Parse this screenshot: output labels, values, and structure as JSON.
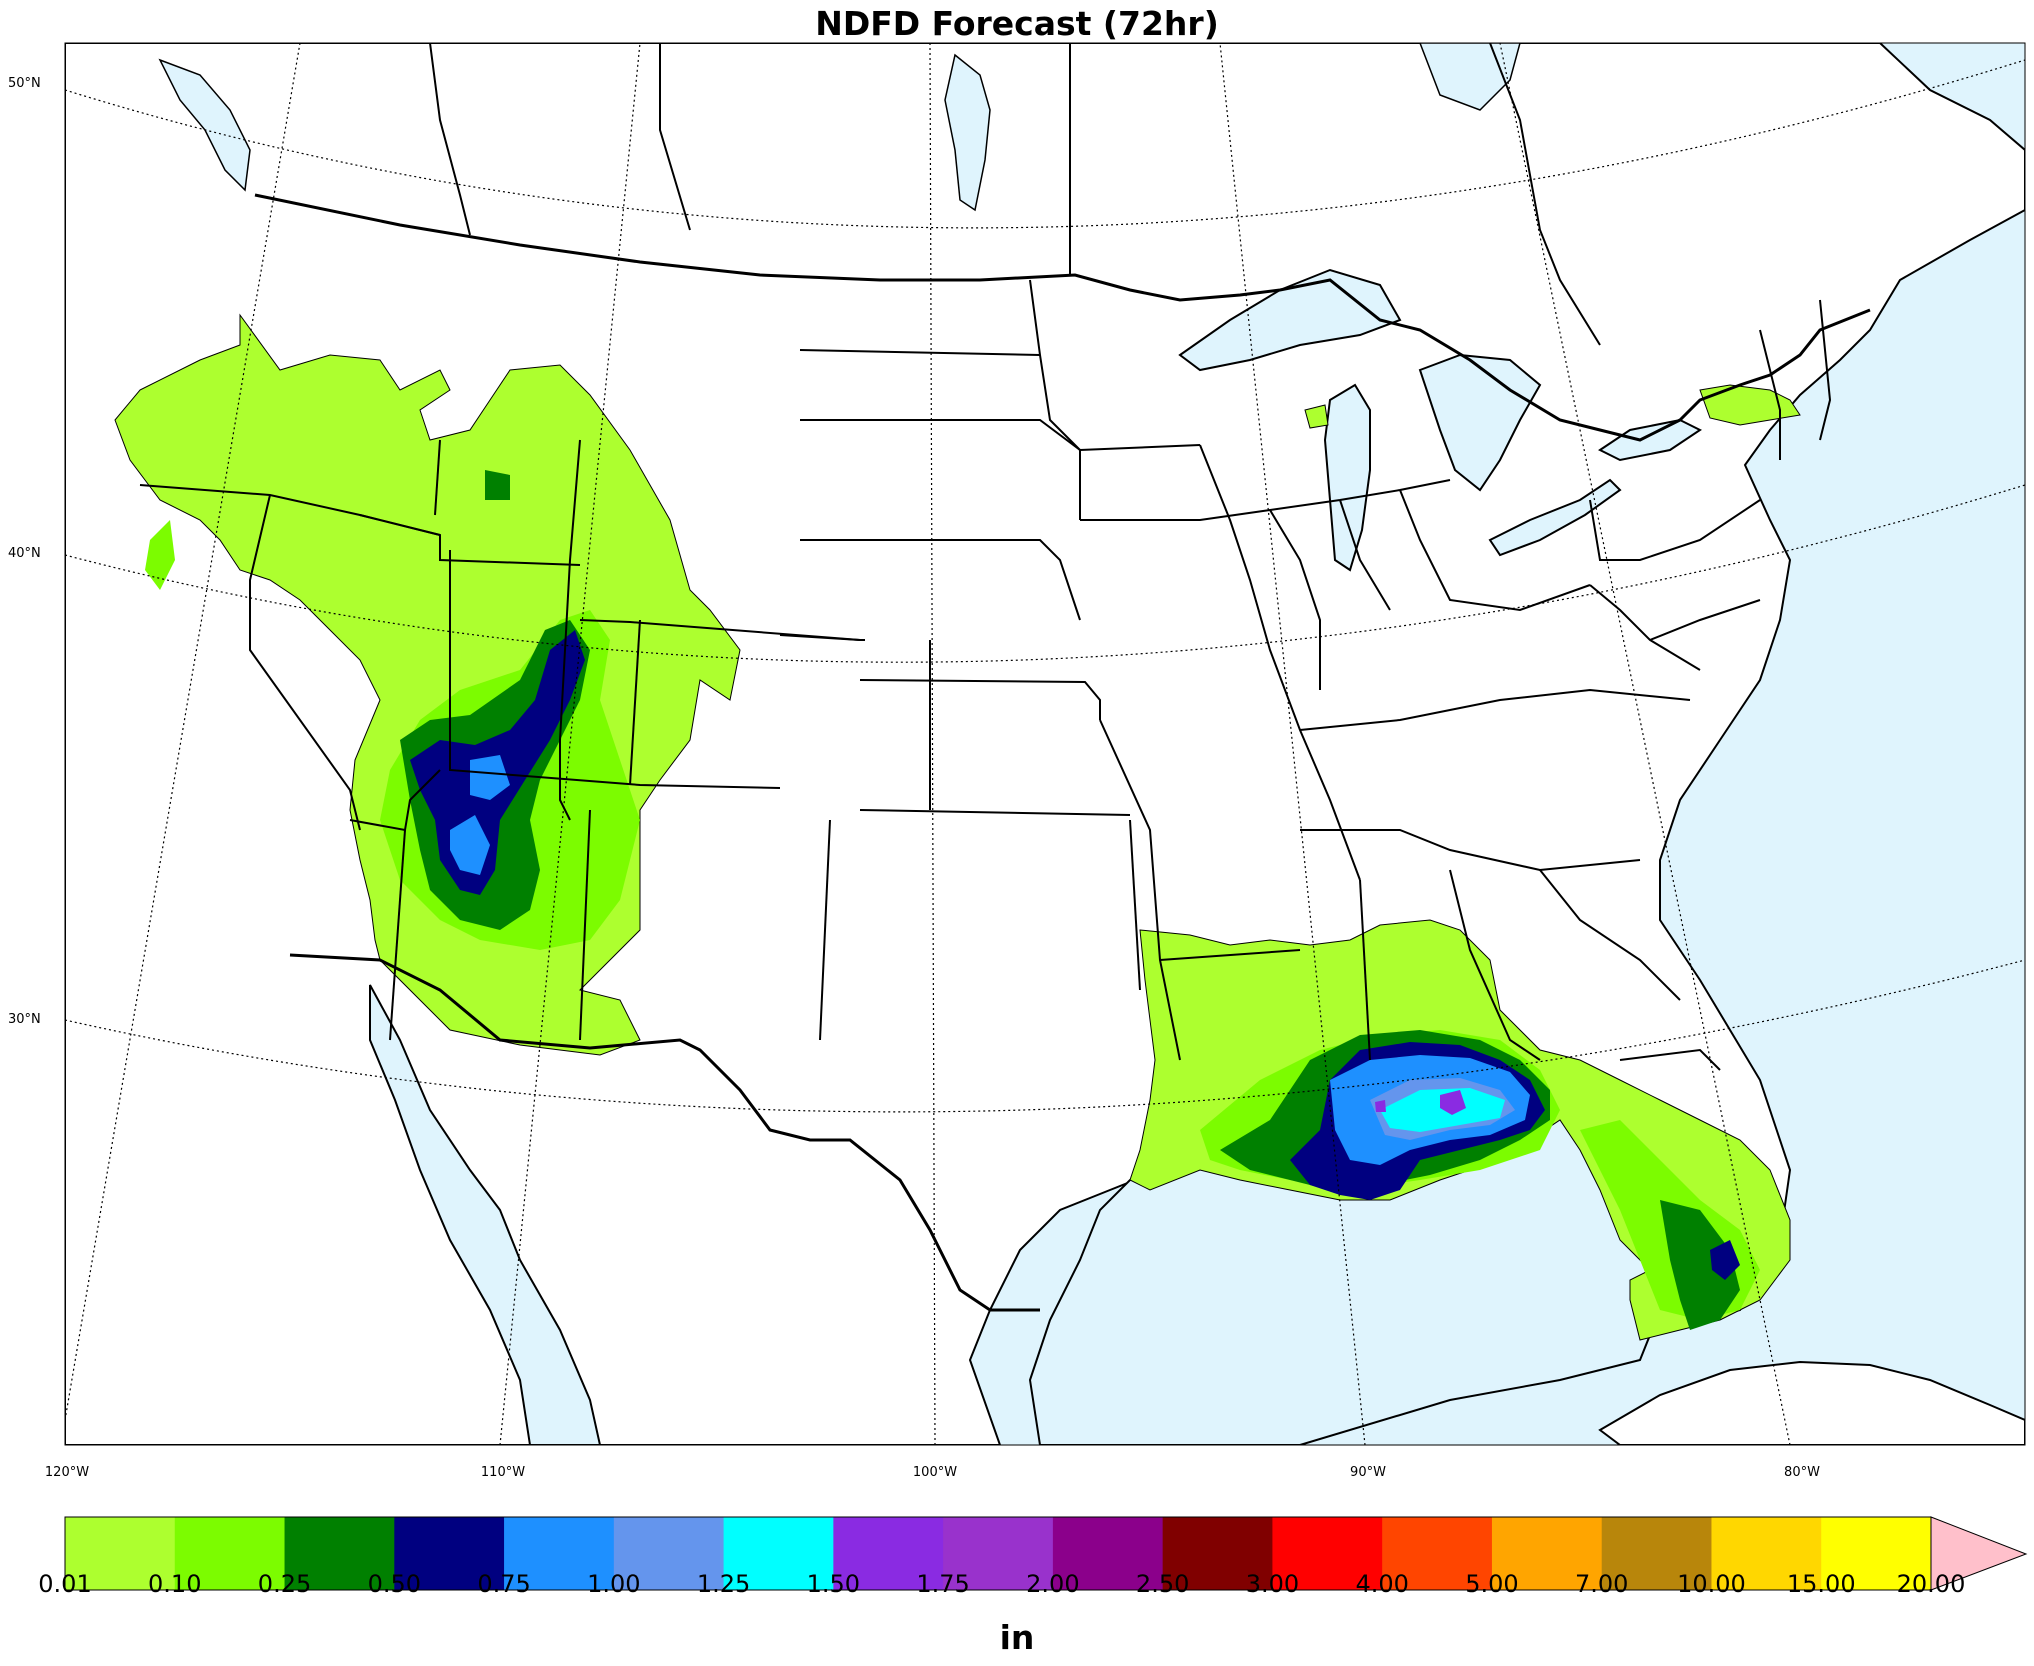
{
  "title": "NDFD Forecast (72hr)",
  "colors": {
    "water": "#dff4fd",
    "land": "#ffffff",
    "border": "#000000",
    "extend": "#ffc0cb"
  },
  "latitude_labels": [
    "50°N",
    "40°N",
    "30°N"
  ],
  "longitude_labels": [
    "120°W",
    "110°W",
    "100°W",
    "90°W",
    "80°W"
  ],
  "colorbar": {
    "unit": "in",
    "ticks": [
      "0.01",
      "0.10",
      "0.25",
      "0.50",
      "0.75",
      "1.00",
      "1.25",
      "1.50",
      "1.75",
      "2.00",
      "2.50",
      "3.00",
      "4.00",
      "5.00",
      "7.00",
      "10.00",
      "15.00",
      "20.00"
    ],
    "colors": [
      "#adff2f",
      "#7cfc00",
      "#008000",
      "#000080",
      "#1e90ff",
      "#6495ed",
      "#00ffff",
      "#8a2be2",
      "#9932cc",
      "#8b008b",
      "#800000",
      "#ff0000",
      "#ff4500",
      "#ffa500",
      "#b8860b",
      "#ffd700",
      "#ffff00"
    ],
    "extend_color": "#ffc0cb"
  }
}
